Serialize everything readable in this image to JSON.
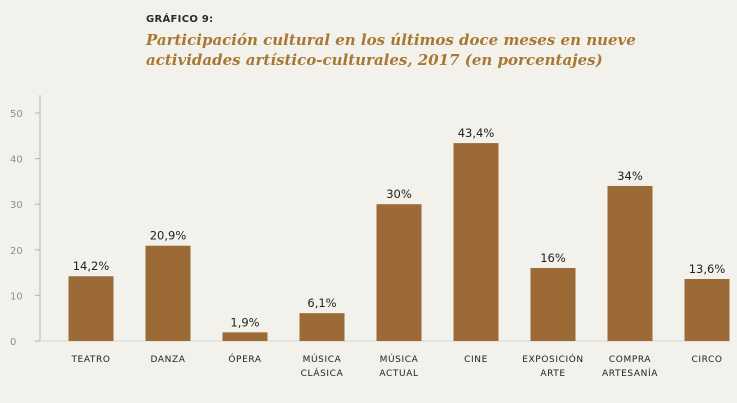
{
  "chart_data": {
    "type": "bar",
    "label": "GRÁFICO 9:",
    "title": "Participación cultural en los últimos doce meses en nueve actividades artístico-culturales, 2017 (en porcentajes)",
    "categories": [
      [
        "TEATRO"
      ],
      [
        "DANZA"
      ],
      [
        "ÓPERA"
      ],
      [
        "MÚSICA",
        "CLÁSICA"
      ],
      [
        "MÚSICA",
        "ACTUAL"
      ],
      [
        "CINE"
      ],
      [
        "EXPOSICIÓN",
        "ARTE"
      ],
      [
        "COMPRA",
        "ARTESANÍA"
      ],
      [
        "CIRCO"
      ]
    ],
    "values": [
      14.2,
      20.9,
      1.9,
      6.1,
      30,
      43.4,
      16,
      34,
      13.6
    ],
    "data_labels": [
      "14,2%",
      "20,9%",
      "1,9%",
      "6,1%",
      "30%",
      "43,4%",
      "16%",
      "34%",
      "13,6%"
    ],
    "ylim": [
      0,
      50
    ],
    "yticks": [
      0,
      10,
      20,
      30,
      40,
      50
    ],
    "grid": false,
    "bar_color": "#9b6a36",
    "title_color": "#a87833",
    "axis_color": "#b5b5b5"
  }
}
